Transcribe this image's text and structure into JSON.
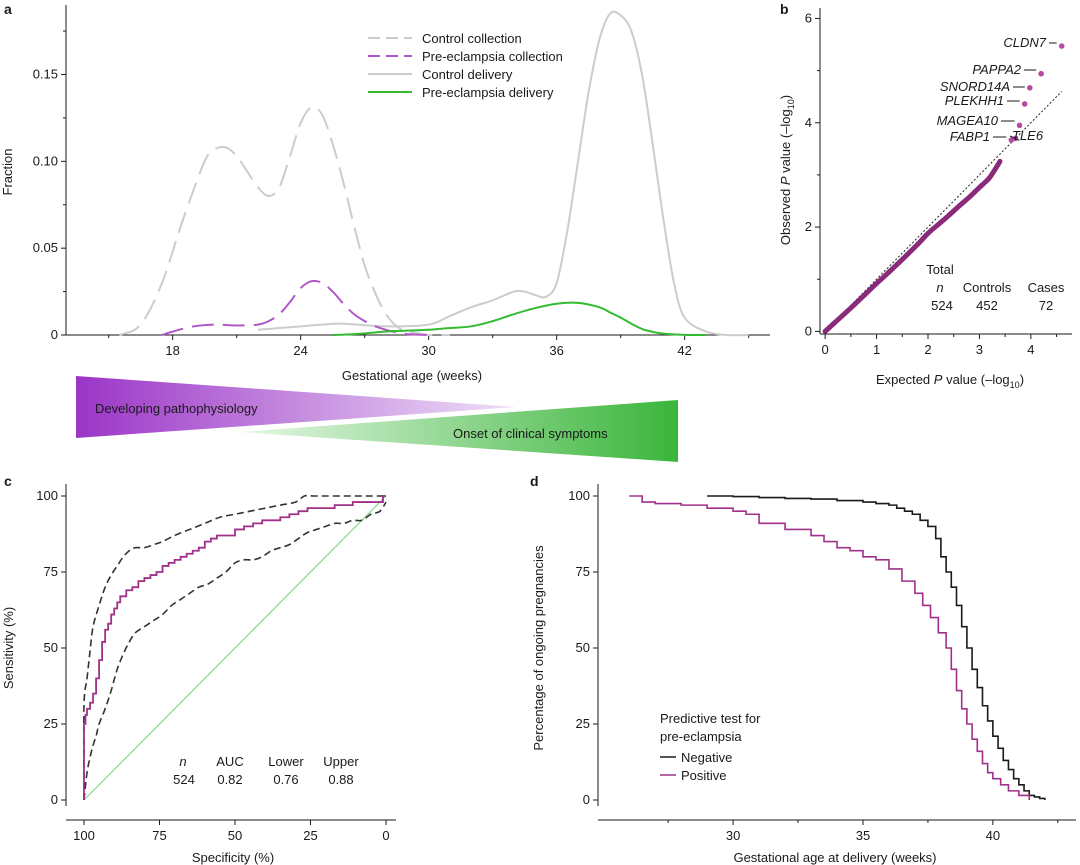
{
  "panels": {
    "a": {
      "letter": "a",
      "chart_data": {
        "type": "line",
        "xlabel": "Gestational age (weeks)",
        "ylabel": "Fraction",
        "xlim": [
          13,
          46
        ],
        "ylim": [
          0,
          0.19
        ],
        "xticks": [
          18,
          24,
          30,
          36,
          42
        ],
        "yticks": [
          0,
          0.05,
          0.1,
          0.15
        ],
        "ytick_labels": [
          "0",
          "0.05",
          "0.10",
          "0.15"
        ],
        "series": [
          {
            "name": "Control collection",
            "style": "dashed",
            "color": "#cccccc",
            "x": [
              15.5,
              16.5,
              17.5,
              18.5,
              19.5,
              20.0,
              20.5,
              21.0,
              21.5,
              22.0,
              22.5,
              23.0,
              23.5,
              24.0,
              24.5,
              25.0,
              25.5,
              26.0,
              26.5,
              27.0,
              27.5,
              28.0,
              28.5,
              29.0,
              29.5,
              30.0,
              31.0
            ],
            "y": [
              0.0,
              0.006,
              0.03,
              0.067,
              0.1,
              0.107,
              0.108,
              0.103,
              0.094,
              0.085,
              0.08,
              0.085,
              0.103,
              0.122,
              0.131,
              0.127,
              0.11,
              0.088,
              0.063,
              0.04,
              0.024,
              0.012,
              0.005,
              0.002,
              0.001,
              0.0,
              0.0
            ]
          },
          {
            "name": "Pre-eclampsia collection",
            "style": "dashed",
            "color": "#b058c8",
            "x": [
              17.5,
              18.0,
              19.0,
              20.0,
              21.0,
              22.0,
              22.5,
              23.0,
              23.5,
              24.0,
              24.5,
              25.0,
              25.5,
              26.0,
              26.5,
              27.0,
              27.5,
              28.0,
              28.5,
              29.0,
              30.0
            ],
            "y": [
              0.0,
              0.002,
              0.005,
              0.006,
              0.0055,
              0.006,
              0.008,
              0.012,
              0.019,
              0.027,
              0.031,
              0.03,
              0.025,
              0.018,
              0.012,
              0.008,
              0.005,
              0.003,
              0.0015,
              0.0005,
              0.0
            ]
          },
          {
            "name": "Control delivery",
            "style": "solid",
            "color": "#cccccc",
            "x": [
              22.0,
              23.0,
              24.0,
              25.0,
              26.0,
              28.0,
              30.0,
              31.0,
              32.0,
              33.0,
              34.0,
              34.5,
              35.0,
              35.5,
              36.0,
              36.5,
              37.0,
              37.5,
              38.0,
              38.5,
              39.0,
              39.5,
              40.0,
              40.5,
              41.0,
              41.5,
              42.0,
              43.0,
              44.0,
              45.0
            ],
            "y": [
              0.003,
              0.004,
              0.005,
              0.006,
              0.0065,
              0.005,
              0.006,
              0.011,
              0.016,
              0.02,
              0.025,
              0.025,
              0.023,
              0.022,
              0.03,
              0.06,
              0.1,
              0.14,
              0.17,
              0.185,
              0.184,
              0.175,
              0.15,
              0.11,
              0.067,
              0.03,
              0.01,
              0.002,
              0.0,
              0.0
            ]
          },
          {
            "name": "Pre-eclampsia delivery",
            "style": "solid",
            "color": "#33bb33",
            "x": [
              25.5,
              26.5,
              28.0,
              29.0,
              30.0,
              31.0,
              32.0,
              33.0,
              34.0,
              35.0,
              36.0,
              37.0,
              38.0,
              38.5,
              39.0,
              39.5,
              40.0,
              40.5,
              41.0,
              42.0,
              43.0
            ],
            "y": [
              0.0,
              0.0005,
              0.002,
              0.0025,
              0.003,
              0.004,
              0.005,
              0.008,
              0.012,
              0.0155,
              0.018,
              0.0185,
              0.016,
              0.013,
              0.01,
              0.0065,
              0.0035,
              0.0018,
              0.0008,
              0.0001,
              0.0
            ]
          }
        ]
      },
      "wedges": {
        "pathophysiology_label": "Developing pathophysiology",
        "clinical_label": "Onset of clinical symptoms",
        "pathophysiology_color": "#9b35c7",
        "clinical_color": "#3ab53a"
      }
    },
    "b": {
      "letter": "b",
      "chart_data": {
        "type": "scatter",
        "xlabel_main": "Expected ",
        "xlabel_p": "P",
        "xlabel_rest": " value (–log",
        "xlabel_sub": "10",
        "xlabel_end": ")",
        "ylabel_main": "Observed ",
        "ylabel_p": "P",
        "ylabel_rest": " value (–log",
        "ylabel_sub": "10",
        "ylabel_end": ")",
        "xlim": [
          -0.1,
          4.8
        ],
        "ylim": [
          -0.05,
          6.2
        ],
        "xticks": [
          0,
          1,
          2,
          3,
          4
        ],
        "yticks": [
          0,
          2,
          4,
          6
        ],
        "point_color": "#8a2a7a",
        "highlight_color": "#b44ca6",
        "curve": {
          "x": [
            0.0,
            0.2,
            0.5,
            0.8,
            1.0,
            1.2,
            1.5,
            1.8,
            2.0,
            2.2,
            2.4,
            2.6,
            2.8,
            3.0,
            3.1,
            3.2,
            3.3,
            3.4
          ],
          "y": [
            0.0,
            0.18,
            0.45,
            0.73,
            0.92,
            1.1,
            1.38,
            1.67,
            1.88,
            2.05,
            2.22,
            2.4,
            2.57,
            2.76,
            2.85,
            2.95,
            3.1,
            3.26
          ]
        },
        "highlighted": [
          {
            "gene": "CLDN7",
            "x": 4.6,
            "y": 5.47
          },
          {
            "gene": "PAPPA2",
            "x": 4.2,
            "y": 4.94
          },
          {
            "gene": "SNORD14A",
            "x": 3.98,
            "y": 4.67
          },
          {
            "gene": "PLEKHH1",
            "x": 3.88,
            "y": 4.36
          },
          {
            "gene": "MAGEA10",
            "x": 3.78,
            "y": 3.95
          },
          {
            "gene": "FABP1",
            "x": 3.62,
            "y": 3.67
          },
          {
            "gene": "TLE6",
            "x": 3.7,
            "y": 3.7
          }
        ],
        "table": {
          "header_total": "Total",
          "header_n": "n",
          "header_controls": "Controls",
          "header_cases": "Cases",
          "value_total": "524",
          "value_controls": "452",
          "value_cases": "72"
        }
      }
    },
    "c": {
      "letter": "c",
      "chart_data": {
        "type": "line",
        "xlabel": "Specificity (%)",
        "ylabel": "Sensitivity (%)",
        "xlim": [
          100,
          0
        ],
        "ylim": [
          0,
          100
        ],
        "xticks": [
          100,
          75,
          50,
          25,
          0
        ],
        "yticks": [
          0,
          25,
          50,
          75,
          100
        ],
        "series": [
          {
            "name": "ROC",
            "style": "step",
            "color": "#a0308a",
            "spec": [
              100,
              100,
              99.5,
              99,
              98,
              97,
              96,
              95,
              94,
              93,
              92,
              91,
              90,
              89,
              88,
              86,
              84,
              82,
              80,
              78,
              76,
              74,
              72,
              70,
              68,
              66,
              64,
              62,
              60,
              58,
              56,
              54,
              52,
              50,
              47,
              44,
              41,
              38,
              35,
              32,
              29,
              26,
              23,
              20,
              17,
              14,
              11,
              8,
              5,
              3,
              1,
              0
            ],
            "sens": [
              0,
              18,
              25,
              28,
              30,
              32,
              35,
              40,
              46,
              52,
              56,
              58,
              61,
              63,
              65,
              67,
              69,
              70,
              72,
              73,
              74,
              75,
              77,
              78,
              79,
              80,
              81,
              82,
              83,
              85,
              86,
              87,
              87,
              87,
              89,
              90,
              91,
              92,
              92,
              93,
              94,
              95,
              96,
              96,
              96,
              97,
              97,
              98,
              98,
              98,
              98,
              100
            ]
          },
          {
            "name": "Upper CI",
            "style": "dashed",
            "color": "#333333",
            "spec": [
              100,
              100,
              99,
              98,
              97,
              95,
              93,
              91,
              89,
              87,
              85,
              83,
              80,
              77,
              74,
              70,
              65,
              60,
              55,
              50,
              45,
              40,
              35,
              30,
              27,
              24,
              20,
              15,
              10,
              5,
              0
            ],
            "sens": [
              0,
              31,
              40,
              49,
              57,
              64,
              70,
              74,
              77,
              80,
              82,
              83,
              83,
              84,
              85,
              87,
              89,
              91,
              93,
              94,
              95,
              96,
              97,
              98,
              100,
              100,
              100,
              100,
              100,
              100,
              100
            ]
          },
          {
            "name": "Lower CI",
            "style": "dashed",
            "color": "#333333",
            "spec": [
              100,
              99,
              98,
              97,
              96,
              95,
              93,
              91,
              89,
              87,
              85,
              83,
              80,
              77,
              74,
              71,
              68,
              65,
              62,
              59,
              56,
              53,
              50,
              47,
              44,
              41,
              38,
              35,
              32,
              29,
              26,
              23,
              20,
              17,
              14,
              11,
              8,
              5,
              2,
              0
            ],
            "sens": [
              0,
              9,
              14,
              18,
              21,
              25,
              30,
              36,
              43,
              48,
              52,
              55,
              57,
              59,
              61,
              64,
              66,
              68,
              70,
              71,
              73,
              75,
              78,
              79,
              79,
              80,
              82,
              83,
              84,
              86,
              88,
              89,
              90,
              91,
              91,
              92,
              92,
              94,
              95,
              98
            ]
          },
          {
            "name": "Chance",
            "style": "solid",
            "color": "#88d888",
            "spec": [
              100,
              0
            ],
            "sens": [
              0,
              100
            ]
          }
        ],
        "table": {
          "header_n": "n",
          "header_auc": "AUC",
          "header_lower": "Lower",
          "header_upper": "Upper",
          "value_n": "524",
          "value_auc": "0.82",
          "value_lower": "0.76",
          "value_upper": "0.88"
        }
      }
    },
    "d": {
      "letter": "d",
      "chart_data": {
        "type": "line",
        "xlabel": "Gestational age at delivery (weeks)",
        "ylabel": "Percentage of ongoing pregnancies",
        "xlim": [
          24.8,
          43.2
        ],
        "ylim": [
          -3,
          106
        ],
        "xticks": [
          30,
          35,
          40
        ],
        "yticks": [
          0,
          25,
          50,
          75,
          100
        ],
        "legend_title_1": "Predictive test for",
        "legend_title_2": "pre-eclampsia",
        "series": [
          {
            "name": "Negative",
            "style": "step",
            "color": "#1a1a1a",
            "x": [
              29.0,
              30.0,
              31.0,
              32.0,
              33.0,
              34.0,
              35.0,
              35.5,
              36.0,
              36.3,
              36.6,
              36.9,
              37.2,
              37.5,
              37.8,
              38.0,
              38.2,
              38.4,
              38.6,
              38.8,
              39.0,
              39.2,
              39.4,
              39.6,
              39.8,
              40.0,
              40.2,
              40.4,
              40.6,
              40.8,
              41.0,
              41.2,
              41.4,
              41.6,
              41.8,
              42.0
            ],
            "y": [
              100,
              99.8,
              99.5,
              99.2,
              99,
              98.5,
              98,
              97.5,
              97,
              96,
              95,
              94,
              92,
              90,
              86,
              80,
              75,
              70,
              64,
              57,
              50,
              43,
              37,
              31,
              26,
              21,
              17,
              13,
              10,
              7,
              5,
              3,
              1.5,
              1,
              0.5,
              0
            ]
          },
          {
            "name": "Positive",
            "style": "step",
            "color": "#a0308a",
            "x": [
              26.0,
              26.5,
              27.0,
              28.0,
              29.0,
              30.0,
              30.5,
              31.0,
              32.0,
              33.0,
              33.5,
              34.0,
              34.5,
              35.0,
              35.5,
              36.0,
              36.5,
              37.0,
              37.3,
              37.6,
              37.9,
              38.2,
              38.4,
              38.6,
              38.8,
              39.0,
              39.2,
              39.4,
              39.6,
              39.8,
              40.0,
              40.3,
              40.6,
              41.0,
              41.4
            ],
            "y": [
              100,
              98,
              97.5,
              97,
              96,
              95,
              94,
              91,
              89,
              87,
              85,
              83,
              82,
              80,
              79,
              76,
              72,
              68,
              64,
              60,
              55,
              50,
              43,
              36,
              30,
              25,
              20,
              16,
              12,
              9,
              7,
              5,
              3,
              1.5,
              0
            ]
          }
        ]
      }
    }
  }
}
